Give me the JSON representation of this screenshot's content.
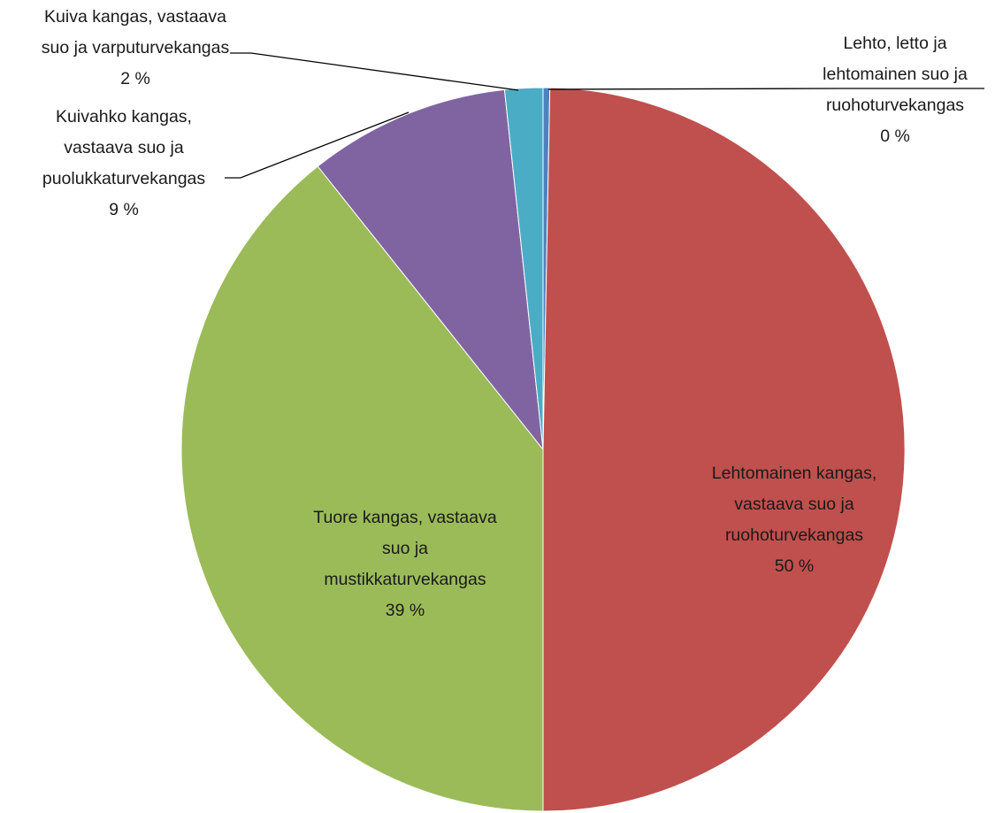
{
  "chart_data": {
    "type": "pie",
    "title": "",
    "slices": [
      {
        "name": "Lehto, letto ja lehtomainen suo ja ruohoturvekangas",
        "value": 0.3,
        "label_lines": [
          "Lehto,  letto ja",
          "lehtomainen suo ja",
          "ruohoturvekangas",
          "0 %"
        ],
        "color": "#4f81bd"
      },
      {
        "name": "Lehtomainen kangas, vastaava suo ja ruohoturvekangas",
        "value": 49.7,
        "label_lines": [
          "Lehtomainen  kangas,",
          "vastaava suo ja",
          "ruohoturvekangas",
          "50 %"
        ],
        "color": "#c0504d"
      },
      {
        "name": "Tuore kangas, vastaava suo ja mustikkaturvekangas",
        "value": 39.3,
        "label_lines": [
          "Tuore kangas, vastaava",
          "suo ja",
          "mustikkaturvekangas",
          "39 %"
        ],
        "color": "#9bbb59"
      },
      {
        "name": "Kuivahko kangas, vastaava suo ja puolukkaturvekangas",
        "value": 9.0,
        "label_lines": [
          "Kuivahko kangas,",
          "vastaava suo ja",
          "puolukkaturvekangas",
          "9 %"
        ],
        "color": "#8064a2"
      },
      {
        "name": "Kuiva kangas, vastaava suo ja varputurvekangas",
        "value": 1.7,
        "label_lines": [
          "Kuiva kangas, vastaava",
          "suo ja varputurvekangas",
          "2 %"
        ],
        "color": "#4bacc6"
      }
    ]
  }
}
